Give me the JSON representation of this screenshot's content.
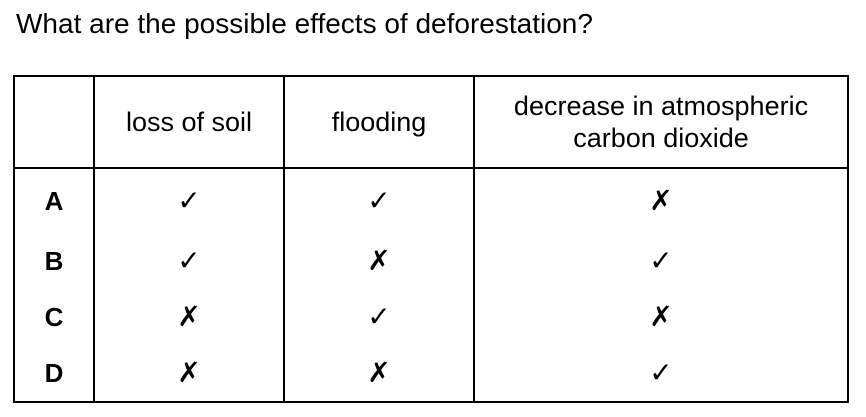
{
  "question": "What are the possible effects of deforestation?",
  "table": {
    "corner": "",
    "columns": [
      "loss of soil",
      "flooding",
      "decrease in atmospheric carbon dioxide"
    ],
    "rows": [
      {
        "label": "A",
        "marks": [
          "✓",
          "✓",
          "✗"
        ]
      },
      {
        "label": "B",
        "marks": [
          "✓",
          "✗",
          "✓"
        ]
      },
      {
        "label": "C",
        "marks": [
          "✗",
          "✓",
          "✗"
        ]
      },
      {
        "label": "D",
        "marks": [
          "✗",
          "✗",
          "✓"
        ]
      }
    ]
  }
}
